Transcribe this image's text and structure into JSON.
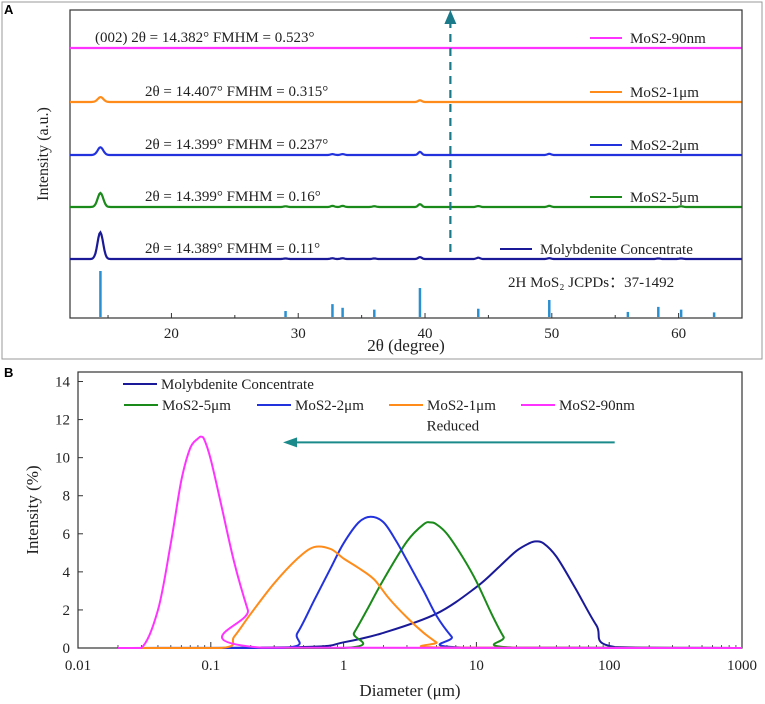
{
  "chart_data": [
    {
      "panel": "A",
      "type": "line",
      "title": "",
      "xlabel": "2θ (degree)",
      "ylabel": "Intensity (a.u.)",
      "xlim": [
        12,
        65
      ],
      "xticks": [
        20,
        30,
        40,
        50,
        60
      ],
      "ytick_labels_shown": false,
      "series": [
        {
          "name": "MoS2-90nm",
          "color": "#ff33ff",
          "annotation": "(002)  2θ = 14.382°  FMHM = 0.523°",
          "peak_height": 0.0,
          "peaks": [
            [
              14.38,
              0.0
            ]
          ]
        },
        {
          "name": "MoS2-1μm",
          "color": "#ff8c1a",
          "annotation": "2θ = 14.407°  FMHM = 0.315°",
          "peak_height": 0.35,
          "peaks": [
            [
              14.41,
              1.0
            ],
            [
              39.6,
              0.35
            ]
          ]
        },
        {
          "name": "MoS2-2μm",
          "color": "#2233dd",
          "annotation": "2θ = 14.399°  FMHM = 0.237°",
          "peak_height": 0.55,
          "peaks": [
            [
              14.4,
              1.0
            ],
            [
              32.7,
              0.12
            ],
            [
              33.5,
              0.12
            ],
            [
              39.6,
              0.4
            ],
            [
              49.8,
              0.15
            ]
          ]
        },
        {
          "name": "MoS2-5μm",
          "color": "#1a8a1a",
          "annotation": "2θ = 14.399°  FMHM = 0.16°",
          "peak_height": 1.0,
          "peaks": [
            [
              14.4,
              1.0
            ],
            [
              29.0,
              0.05
            ],
            [
              32.7,
              0.08
            ],
            [
              33.5,
              0.08
            ],
            [
              36.0,
              0.06
            ],
            [
              39.6,
              0.2
            ],
            [
              44.2,
              0.07
            ],
            [
              49.8,
              0.08
            ],
            [
              60.2,
              0.05
            ]
          ]
        },
        {
          "name": "Molybdenite Concentrate",
          "color": "#1a1a99",
          "annotation": "2θ = 14.389°  FMHM = 0.11°",
          "peak_height": 1.9,
          "peaks": [
            [
              14.39,
              1.0
            ],
            [
              29.0,
              0.02
            ],
            [
              32.7,
              0.03
            ],
            [
              33.5,
              0.03
            ],
            [
              36.0,
              0.02
            ],
            [
              39.6,
              0.07
            ],
            [
              44.2,
              0.05
            ],
            [
              49.8,
              0.03
            ],
            [
              58.4,
              0.02
            ],
            [
              60.2,
              0.02
            ]
          ]
        }
      ],
      "reference": {
        "label": "2H MoS₂ JCPDs：37-1492",
        "color": "#2a8fd0",
        "lines": [
          [
            14.4,
            1.0
          ],
          [
            29.0,
            0.13
          ],
          [
            32.7,
            0.28
          ],
          [
            33.5,
            0.2
          ],
          [
            36.0,
            0.16
          ],
          [
            39.6,
            0.63
          ],
          [
            44.2,
            0.18
          ],
          [
            49.8,
            0.37
          ],
          [
            56.0,
            0.11
          ],
          [
            58.4,
            0.22
          ],
          [
            60.2,
            0.16
          ],
          [
            62.8,
            0.1
          ]
        ]
      },
      "arrow": {
        "x": 42.0,
        "direction": "up",
        "color": "#1a7a8a",
        "style": "dashed"
      }
    },
    {
      "panel": "B",
      "type": "line",
      "title": "",
      "xlabel": "Diameter (μm)",
      "ylabel": "Intensity (%)",
      "xscale": "log",
      "xlim": [
        0.01,
        1000
      ],
      "xtick_labels": [
        "0.01",
        "0.1",
        "1",
        "10",
        "100",
        "1000"
      ],
      "ylim": [
        0,
        14.5
      ],
      "yticks": [
        0,
        2,
        4,
        6,
        8,
        10,
        12,
        14
      ],
      "series": [
        {
          "name": "Molybdenite Concentrate",
          "color": "#1a1a99",
          "x": [
            0.02,
            0.5,
            1.0,
            2.0,
            5.0,
            10,
            15,
            20,
            25,
            28,
            32,
            40,
            55,
            80,
            110,
            1000
          ],
          "y": [
            0,
            0.05,
            0.3,
            0.8,
            1.8,
            3.2,
            4.3,
            5.1,
            5.5,
            5.6,
            5.5,
            4.8,
            3.2,
            1.2,
            0.05,
            0
          ]
        },
        {
          "name": "MoS2-5μm",
          "color": "#1a8a1a",
          "x": [
            0.02,
            1.0,
            1.2,
            1.5,
            2.0,
            3.0,
            4.0,
            4.5,
            5.0,
            6.0,
            8.0,
            10,
            13,
            16,
            19,
            1000
          ],
          "y": [
            0,
            0,
            0.8,
            2.0,
            3.6,
            5.6,
            6.5,
            6.6,
            6.5,
            6.0,
            4.7,
            3.5,
            1.8,
            0.6,
            0.02,
            0
          ]
        },
        {
          "name": "MoS2-2μm",
          "color": "#2233dd",
          "x": [
            0.02,
            0.35,
            0.45,
            0.6,
            0.8,
            1.0,
            1.3,
            1.6,
            2.0,
            2.5,
            3.0,
            4.0,
            5.0,
            6.5,
            8.0,
            1000
          ],
          "y": [
            0,
            0,
            0.8,
            2.5,
            4.2,
            5.5,
            6.6,
            6.9,
            6.6,
            5.6,
            4.6,
            3.0,
            1.7,
            0.6,
            0.02,
            0
          ]
        },
        {
          "name": "MoS2-1μm",
          "color": "#ff8c1a",
          "x": [
            0.02,
            0.12,
            0.15,
            0.2,
            0.3,
            0.45,
            0.6,
            0.8,
            1.0,
            1.3,
            1.7,
            2.2,
            3.0,
            4.0,
            5.0,
            5.8,
            1000
          ],
          "y": [
            0,
            0,
            0.6,
            1.8,
            3.4,
            4.7,
            5.3,
            5.2,
            4.7,
            4.2,
            3.6,
            2.6,
            1.6,
            0.8,
            0.3,
            0.02,
            0
          ]
        },
        {
          "name": "MoS2-90nm",
          "color": "#ff33ff",
          "x": [
            0.02,
            0.03,
            0.04,
            0.05,
            0.06,
            0.07,
            0.08,
            0.085,
            0.09,
            0.1,
            0.12,
            0.15,
            0.19,
            0.24,
            1000
          ],
          "y": [
            0,
            0,
            2.0,
            5.5,
            8.8,
            10.5,
            11.0,
            11.1,
            10.9,
            9.9,
            7.5,
            4.5,
            2.0,
            0.02,
            0
          ]
        }
      ],
      "legend": [
        "Molybdenite Concentrate",
        "MoS2-5μm",
        "MoS2-2μm",
        "MoS2-1μm",
        "MoS2-90nm"
      ],
      "annotation": {
        "text": "Reduced",
        "arrow_from_x": 110,
        "arrow_to_x": 0.35,
        "arrow_y": 10.8,
        "color": "#1a8a8a"
      }
    }
  ],
  "panel_labels": [
    "A",
    "B"
  ]
}
